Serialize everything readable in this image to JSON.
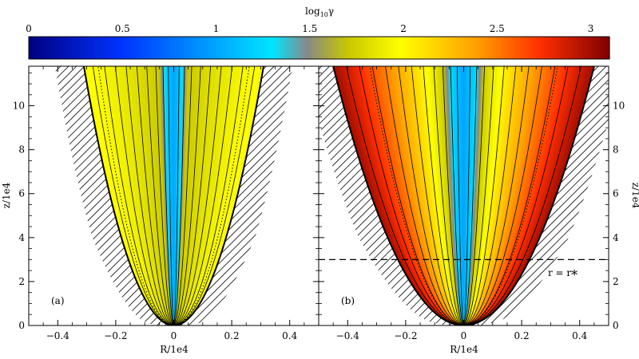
{
  "colorbar": {
    "label": "log10γ",
    "label_base": "log",
    "label_sub": "10",
    "label_sym": "γ",
    "min": 0,
    "max": 3.1,
    "ticks": [
      0,
      0.5,
      1,
      1.5,
      2,
      2.5,
      3
    ],
    "tick_labels": [
      "0",
      "0.5",
      "1",
      "1.5",
      "2",
      "2.5",
      "3"
    ],
    "colormap": [
      [
        0.0,
        "#000080"
      ],
      [
        0.16,
        "#0033ff"
      ],
      [
        0.33,
        "#00aaff"
      ],
      [
        0.42,
        "#00e5ff"
      ],
      [
        0.48,
        "#888888"
      ],
      [
        0.55,
        "#c8c800"
      ],
      [
        0.64,
        "#ffff00"
      ],
      [
        0.77,
        "#ffa000"
      ],
      [
        0.88,
        "#ff3000"
      ],
      [
        1.0,
        "#800000"
      ]
    ]
  },
  "chart_data": [
    {
      "type": "heatmap",
      "panel_label": "(a)",
      "xlabel": "R/1e4",
      "ylabel": "z/1e4",
      "xlim": [
        -0.5,
        0.5
      ],
      "ylim": [
        0,
        11.8
      ],
      "xticks": [
        -0.4,
        -0.2,
        0,
        0.2,
        0.4
      ],
      "xtick_labels": [
        "−0.4",
        "−0.2",
        "0",
        "0.2",
        "0.4"
      ],
      "yticks": [
        0,
        2,
        4,
        6,
        8,
        10
      ],
      "ytick_labels": [
        "0",
        "2",
        "4",
        "6",
        "8",
        "10"
      ],
      "ylabel_side": "left",
      "jet_boundary_R_at_top": 0.31,
      "jet_boundary_shape_exponent": 0.5,
      "center_log10_gamma": 1.0,
      "edge_log10_gamma": 2.0,
      "field_line_fractions": [
        0.06,
        0.12,
        0.2,
        0.3,
        0.41,
        0.53,
        0.65,
        0.77,
        0.9
      ],
      "dotted_line_fraction": 0.84
    },
    {
      "type": "heatmap",
      "panel_label": "(b)",
      "xlabel": "R/1e4",
      "ylabel": "z/1e4",
      "xlim": [
        -0.5,
        0.5
      ],
      "ylim": [
        0,
        11.8
      ],
      "xticks": [
        -0.4,
        -0.2,
        0,
        0.2,
        0.4
      ],
      "xtick_labels": [
        "−0.4",
        "−0.2",
        "0",
        "0.2",
        "0.4"
      ],
      "yticks": [
        0,
        2,
        4,
        6,
        8,
        10
      ],
      "ytick_labels": [
        "0",
        "2",
        "4",
        "6",
        "8",
        "10"
      ],
      "ylabel_side": "right",
      "jet_boundary_R_at_top": 0.45,
      "jet_boundary_shape_exponent": 0.5,
      "transition_z": 3,
      "center_log10_gamma": 1.0,
      "edge_log10_gamma": 3.0,
      "field_line_fractions": [
        0.05,
        0.1,
        0.16,
        0.23,
        0.31,
        0.4,
        0.5,
        0.6,
        0.7,
        0.8,
        0.9
      ],
      "dotted_line_fraction": 0.72,
      "annotation": {
        "dashed_line_z": 3,
        "text": "r = r",
        "text_sub": "*"
      }
    }
  ]
}
